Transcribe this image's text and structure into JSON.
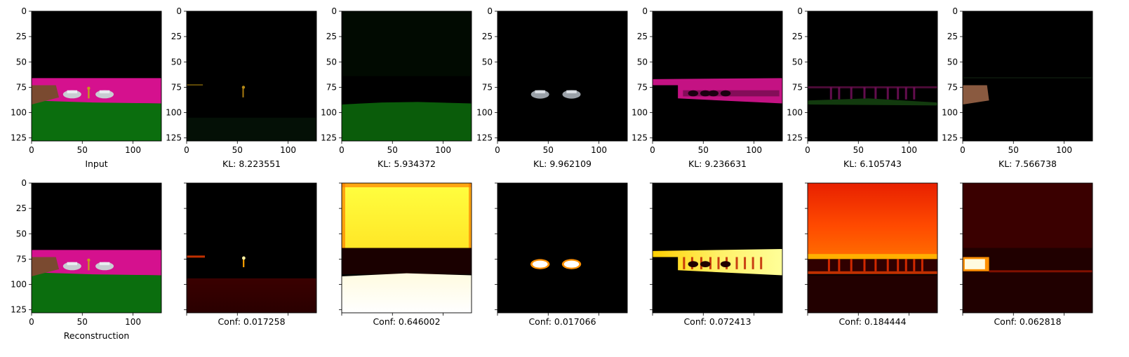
{
  "figure": {
    "colors": {
      "road": "#d5118e",
      "grass": "#0b6e0e",
      "sky": "#000000",
      "wall": "#7a4a30",
      "car": "#c8cdd2",
      "sign": "#c89a1a"
    },
    "colormap": "hot"
  },
  "chart_data": {
    "type": "image-grid",
    "rows": 2,
    "cols": 7,
    "image_size": [
      128,
      128
    ],
    "axes_ticks": [
      0,
      50,
      100
    ],
    "y_ticks": [
      0,
      25,
      50,
      75,
      100,
      125
    ],
    "top_row": [
      {
        "id": "input",
        "caption": "Input",
        "content": "segmentation image: black sky, magenta road, green grass, brown wall, two grey cars, yellow sign"
      },
      {
        "id": "comp1",
        "caption": "KL: 8.223551",
        "kl": 8.223551,
        "content": "sign component"
      },
      {
        "id": "comp2",
        "caption": "KL: 5.934372",
        "kl": 5.934372,
        "content": "grass component"
      },
      {
        "id": "comp3",
        "caption": "KL: 9.962109",
        "kl": 9.962109,
        "content": "cars component"
      },
      {
        "id": "comp4",
        "caption": "KL: 9.236631",
        "kl": 9.236631,
        "content": "road component"
      },
      {
        "id": "comp5",
        "caption": "KL: 6.105743",
        "kl": 6.105743,
        "content": "faint road/grass component"
      },
      {
        "id": "comp6",
        "caption": "KL: 7.566738",
        "kl": 7.566738,
        "content": "wall component"
      }
    ],
    "bottom_row": [
      {
        "id": "recon",
        "caption": "Reconstruction",
        "content": "reconstructed segmentation image"
      },
      {
        "id": "mask1",
        "caption": "Conf: 0.017258",
        "conf": 0.017258
      },
      {
        "id": "mask2",
        "caption": "Conf: 0.646002",
        "conf": 0.646002
      },
      {
        "id": "mask3",
        "caption": "Conf: 0.017066",
        "conf": 0.017066
      },
      {
        "id": "mask4",
        "caption": "Conf: 0.072413",
        "conf": 0.072413
      },
      {
        "id": "mask5",
        "caption": "Conf: 0.184444",
        "conf": 0.184444
      },
      {
        "id": "mask6",
        "caption": "Conf: 0.062818",
        "conf": 0.062818
      }
    ]
  }
}
